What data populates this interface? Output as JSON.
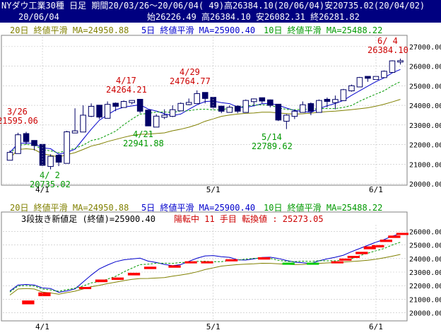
{
  "header": {
    "line1_title": "NYダウ工業30種 日足 期間20/03/26～20/06/04( 49)高26384.10(20/06/04)安20735.02(20/04/02)",
    "line2_date": "20/06/04",
    "line2_ohlc": "始26226.49 高26384.10 安26082.31 終26281.82"
  },
  "colors": {
    "ma20": "#808000",
    "ma5": "#0000cc",
    "ma10": "#009900",
    "annot_high": "#cc0000",
    "annot_low": "#009900",
    "brick_up": "#ff0000",
    "brick_down": "#00cc00",
    "header_bg": "#000080",
    "axis_text": "#000000",
    "grid": "#c0c0c0"
  },
  "legend": {
    "ma20": "20日 終値平滑 MA=24950.88",
    "ma5": "5日 終値平滑 MA=25900.40",
    "ma10": "10日 終値平滑 MA=25488.22"
  },
  "lower_info": {
    "prefix": "3段抜き新値足 (終値)=25900.40 ",
    "status": "陽転中 11 手目 転換値 : 25273.05"
  },
  "chart_data": [
    {
      "type": "candlestick",
      "x": [
        "03/26",
        "03/27",
        "03/30",
        "03/31",
        "04/01",
        "04/02",
        "04/03",
        "04/06",
        "04/07",
        "04/08",
        "04/09",
        "04/13",
        "04/14",
        "04/15",
        "04/16",
        "04/17",
        "04/20",
        "04/21",
        "04/22",
        "04/23",
        "04/24",
        "04/27",
        "04/28",
        "04/29",
        "04/30",
        "05/01",
        "05/04",
        "05/05",
        "05/06",
        "05/07",
        "05/08",
        "05/11",
        "05/12",
        "05/13",
        "05/14",
        "05/15",
        "05/18",
        "05/19",
        "05/20",
        "05/21",
        "05/22",
        "05/26",
        "05/27",
        "05/28",
        "05/29",
        "06/01",
        "06/02",
        "06/03",
        "06/04"
      ],
      "x_ticks": [
        "4/1",
        "5/1",
        "6/1"
      ],
      "ylim": [
        20000,
        27500
      ],
      "y_ticks": [
        20000,
        21000,
        22000,
        23000,
        24000,
        25000,
        26000,
        27000
      ],
      "annotations": [
        {
          "date": "3/26",
          "value": "21595.06",
          "kind": "high"
        },
        {
          "date": "4/17",
          "value": "24264.21",
          "kind": "high"
        },
        {
          "date": "4/29",
          "value": "24764.77",
          "kind": "high"
        },
        {
          "date": "6/ 4",
          "value": "26384.10",
          "kind": "high"
        },
        {
          "date": "4/ 2",
          "value": "20735.02",
          "kind": "low"
        },
        {
          "date": "4/21",
          "value": "22941.88",
          "kind": "low"
        },
        {
          "date": "5/14",
          "value": "22789.62",
          "kind": "low"
        }
      ]
    },
    {
      "type": "three-line-break",
      "ylim": [
        19500,
        26500
      ],
      "y_ticks": [
        20000,
        21000,
        22000,
        23000,
        24000,
        25000,
        26000
      ],
      "x_ticks": [
        "4/1",
        "5/1",
        "6/1"
      ]
    }
  ]
}
